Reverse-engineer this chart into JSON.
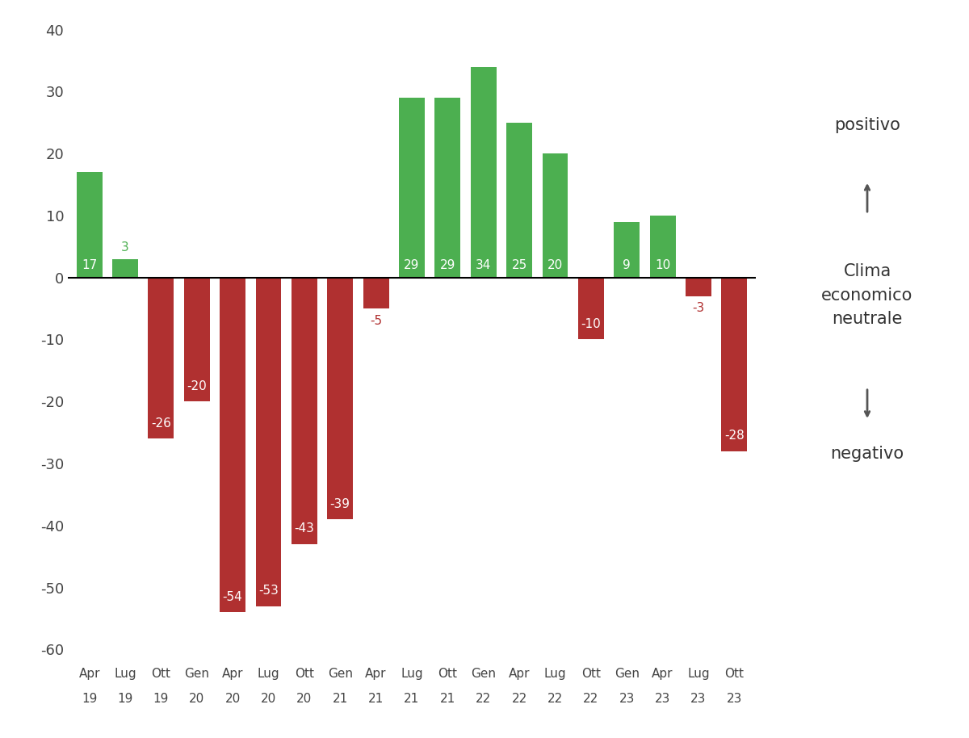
{
  "categories_line1": [
    "Apr",
    "Lug",
    "Ott",
    "Gen",
    "Apr",
    "Lug",
    "Ott",
    "Gen",
    "Apr",
    "Lug",
    "Ott",
    "Gen",
    "Apr",
    "Lug",
    "Ott",
    "Gen",
    "Apr",
    "Lug",
    "Ott"
  ],
  "categories_line2": [
    "19",
    "19",
    "19",
    "20",
    "20",
    "20",
    "20",
    "21",
    "21",
    "21",
    "21",
    "22",
    "22",
    "22",
    "22",
    "23",
    "23",
    "23",
    "23"
  ],
  "values": [
    17,
    3,
    -26,
    -20,
    -54,
    -53,
    -43,
    -39,
    -5,
    29,
    29,
    34,
    25,
    20,
    -10,
    9,
    10,
    -3,
    -28
  ],
  "green_color": "#4CAF50",
  "red_color": "#B03030",
  "ylim": [
    -60,
    40
  ],
  "yticks": [
    -60,
    -50,
    -40,
    -30,
    -20,
    -10,
    0,
    10,
    20,
    30,
    40
  ],
  "legend_text_positivo": "positivo",
  "legend_text_neutrale": "Clima\neconomico\nneutrale",
  "legend_text_negativo": "negativo",
  "background_color": "#ffffff",
  "bar_width": 0.72
}
